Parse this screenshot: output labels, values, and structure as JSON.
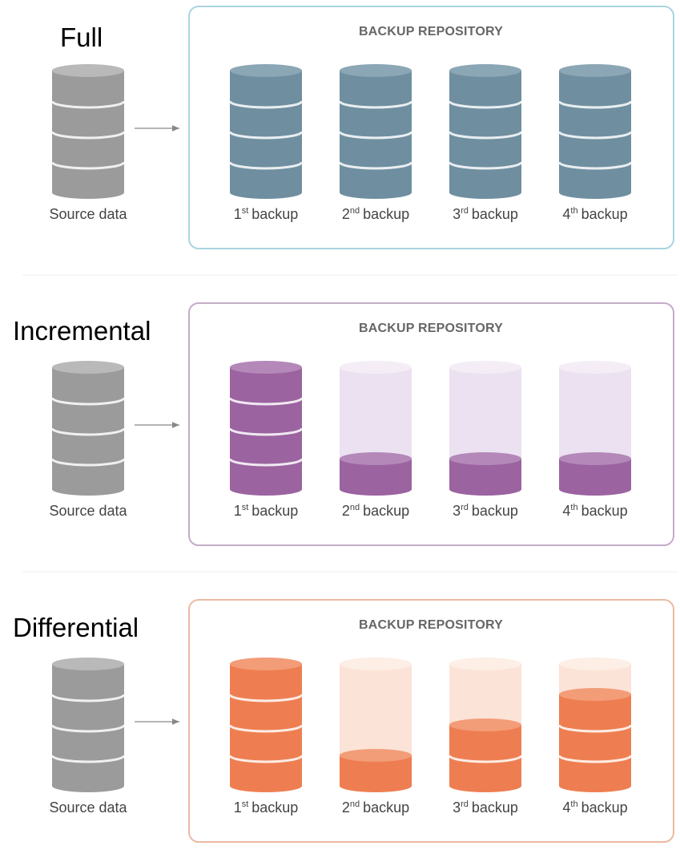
{
  "sections": [
    {
      "title": "Full",
      "source_label": "Source data",
      "repository": {
        "title": "BACKUP REPOSITORY",
        "backups": [
          {
            "number": "1",
            "suffix": "st",
            "text": "backup"
          },
          {
            "number": "2",
            "suffix": "nd",
            "text": "backup"
          },
          {
            "number": "3",
            "suffix": "rd",
            "text": "backup"
          },
          {
            "number": "4",
            "suffix": "th",
            "text": "backup"
          }
        ]
      }
    },
    {
      "title": "Incremental",
      "source_label": "Source data",
      "repository": {
        "title": "BACKUP REPOSITORY",
        "backups": [
          {
            "number": "1",
            "suffix": "st",
            "text": "backup"
          },
          {
            "number": "2",
            "suffix": "nd",
            "text": "backup"
          },
          {
            "number": "3",
            "suffix": "rd",
            "text": "backup"
          },
          {
            "number": "4",
            "suffix": "th",
            "text": "backup"
          }
        ]
      }
    },
    {
      "title": "Differential",
      "source_label": "Source data",
      "repository": {
        "title": "BACKUP REPOSITORY",
        "backups": [
          {
            "number": "1",
            "suffix": "st",
            "text": "backup"
          },
          {
            "number": "2",
            "suffix": "nd",
            "text": "backup"
          },
          {
            "number": "3",
            "suffix": "rd",
            "text": "backup"
          },
          {
            "number": "4",
            "suffix": "th",
            "text": "backup"
          }
        ]
      }
    }
  ]
}
